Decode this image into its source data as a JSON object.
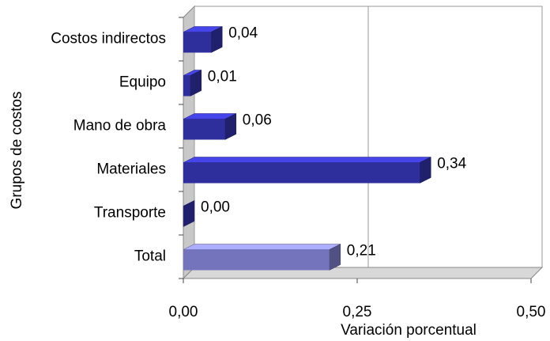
{
  "chart_data": {
    "type": "bar",
    "orientation": "horizontal",
    "x_label": "Variación porcentual",
    "y_label": "Grupos de costos",
    "categories": [
      "Costos indirectos",
      "Equipo",
      "Mano de obra",
      "Materiales",
      "Transporte",
      "Total"
    ],
    "values": [
      0.04,
      0.01,
      0.06,
      0.34,
      0.0,
      0.21
    ],
    "value_labels": [
      "0,04",
      "0,01",
      "0,06",
      "0,34",
      "0,00",
      "0,21"
    ],
    "colors": [
      "#2e2e9c",
      "#2e2e9c",
      "#2e2e9c",
      "#2e2e9c",
      "#2e2e9c",
      "#7474bc"
    ],
    "xlim": [
      0,
      0.5
    ],
    "xticks": [
      {
        "value": 0,
        "label": "0,00"
      },
      {
        "value": 0.25,
        "label": "0,25"
      },
      {
        "value": 0.5,
        "label": "0,50"
      }
    ],
    "grid": true
  }
}
